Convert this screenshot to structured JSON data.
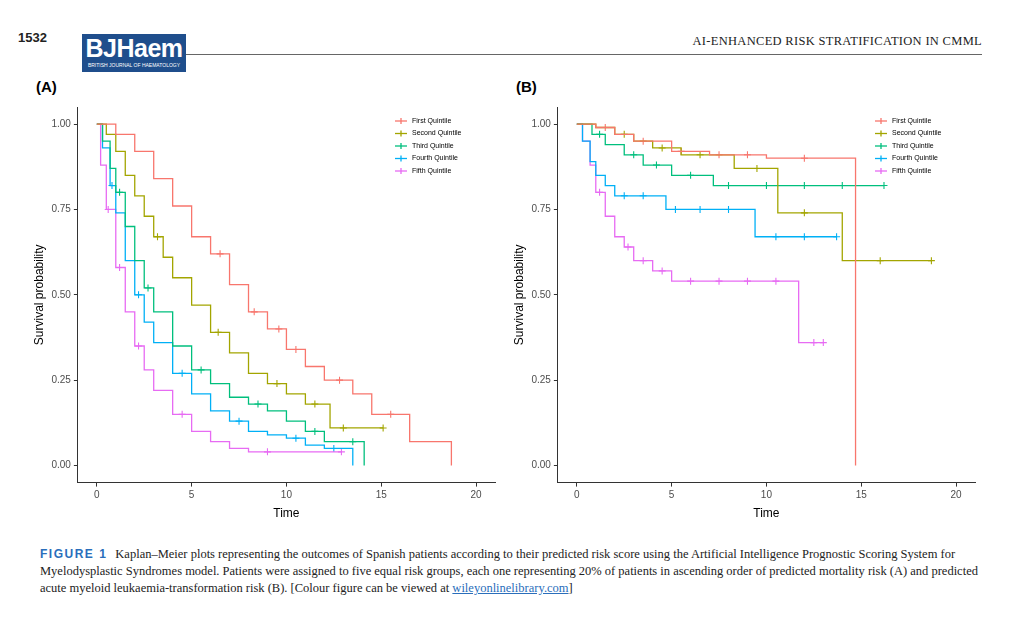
{
  "header": {
    "page": "1532",
    "journal": "BJHaem",
    "journal_subtitle": "BRITISH JOURNAL OF HAEMATOLOGY",
    "running_title": "AI-ENHANCED RISK STRATIFICATION IN CMML"
  },
  "chart_data": [
    {
      "panel": "(A)",
      "type": "line",
      "line_style": "step",
      "marker": "cross",
      "x_label": "Time",
      "y_label": "Survival probability",
      "xlim": [
        -1,
        21
      ],
      "ylim": [
        -0.05,
        1.05
      ],
      "xticks": [
        0,
        5,
        10,
        15,
        20
      ],
      "yticks": [
        {
          "value": 0,
          "label": "0.00"
        },
        {
          "value": 0.25,
          "label": "0.25"
        },
        {
          "value": 0.5,
          "label": "0.50"
        },
        {
          "value": 0.75,
          "label": "0.75"
        },
        {
          "value": 1,
          "label": "1.00"
        }
      ],
      "grid": false,
      "legend": "upper right",
      "series": [
        {
          "name": "First Quintile",
          "color": "#F8766D",
          "x": [
            0,
            1,
            2,
            3,
            4,
            5,
            6,
            7,
            8,
            9,
            10,
            11,
            12,
            13.5,
            14.5,
            16.5,
            18.7
          ],
          "values": [
            1,
            0.97,
            0.92,
            0.84,
            0.76,
            0.67,
            0.62,
            0.53,
            0.45,
            0.4,
            0.34,
            0.29,
            0.25,
            0.21,
            0.15,
            0.07,
            0
          ],
          "censored_x": [
            6.5,
            8.3,
            9.6,
            10.5,
            12.8,
            15.5
          ],
          "censored_y": [
            0.62,
            0.45,
            0.4,
            0.34,
            0.25,
            0.15
          ]
        },
        {
          "name": "Second Quintile",
          "color": "#A3A500",
          "x": [
            0,
            0.5,
            1,
            1.5,
            2,
            2.5,
            3,
            3.5,
            4,
            5,
            6,
            7,
            8,
            9,
            10,
            11,
            12.3,
            15.1
          ],
          "values": [
            1,
            0.97,
            0.92,
            0.85,
            0.79,
            0.73,
            0.67,
            0.61,
            0.55,
            0.47,
            0.39,
            0.33,
            0.27,
            0.24,
            0.21,
            0.18,
            0.11,
            0.11
          ],
          "censored_x": [
            3.2,
            6.4,
            9.5,
            11.5,
            13,
            15.1
          ],
          "censored_y": [
            0.67,
            0.39,
            0.24,
            0.18,
            0.11,
            0.11
          ]
        },
        {
          "name": "Third Quintile",
          "color": "#00BF7D",
          "x": [
            0,
            0.3,
            0.7,
            1,
            1.5,
            2,
            2.5,
            3,
            4,
            5,
            6,
            7,
            8,
            9,
            10,
            11,
            12,
            14.1
          ],
          "values": [
            1,
            0.95,
            0.87,
            0.8,
            0.7,
            0.6,
            0.52,
            0.45,
            0.35,
            0.28,
            0.24,
            0.2,
            0.18,
            0.16,
            0.13,
            0.1,
            0.07,
            0
          ],
          "censored_x": [
            1.2,
            2.7,
            5.5,
            8.5,
            11.5,
            13.5
          ],
          "censored_y": [
            0.8,
            0.52,
            0.28,
            0.18,
            0.1,
            0.07
          ]
        },
        {
          "name": "Fourth Quintile",
          "color": "#00B0F6",
          "x": [
            0,
            0.3,
            0.7,
            1,
            1.5,
            2,
            2.5,
            3,
            4,
            5,
            6,
            7,
            8,
            9,
            10,
            11,
            12,
            13.5
          ],
          "values": [
            1,
            0.93,
            0.82,
            0.74,
            0.6,
            0.5,
            0.42,
            0.36,
            0.27,
            0.21,
            0.16,
            0.13,
            0.1,
            0.09,
            0.08,
            0.06,
            0.05,
            0
          ],
          "censored_x": [
            0.8,
            2.2,
            4.5,
            7.5,
            10.5,
            12.5
          ],
          "censored_y": [
            0.82,
            0.5,
            0.27,
            0.13,
            0.08,
            0.05
          ]
        },
        {
          "name": "Fifth Quintile",
          "color": "#E76BF3",
          "x": [
            0,
            0.2,
            0.5,
            1,
            1.5,
            2,
            2.5,
            3,
            4,
            5,
            6,
            7,
            8,
            12.9
          ],
          "values": [
            1,
            0.88,
            0.75,
            0.58,
            0.45,
            0.35,
            0.28,
            0.22,
            0.15,
            0.1,
            0.07,
            0.05,
            0.04,
            0.04
          ],
          "censored_x": [
            0.6,
            1.2,
            2.2,
            4.5,
            9,
            12.9
          ],
          "censored_y": [
            0.75,
            0.58,
            0.35,
            0.15,
            0.04,
            0.04
          ]
        }
      ]
    },
    {
      "panel": "(B)",
      "type": "line",
      "line_style": "step",
      "marker": "cross",
      "x_label": "Time",
      "y_label": "Survival probability",
      "xlim": [
        -1,
        21
      ],
      "ylim": [
        -0.05,
        1.05
      ],
      "xticks": [
        0,
        5,
        10,
        15,
        20
      ],
      "yticks": [
        {
          "value": 0,
          "label": "0.00"
        },
        {
          "value": 0.25,
          "label": "0.25"
        },
        {
          "value": 0.5,
          "label": "0.50"
        },
        {
          "value": 0.75,
          "label": "0.75"
        },
        {
          "value": 1,
          "label": "1.00"
        }
      ],
      "grid": false,
      "legend": "upper right",
      "series": [
        {
          "name": "First Quintile",
          "color": "#F8766D",
          "x": [
            0,
            1,
            2,
            3,
            5,
            7,
            10,
            14.7
          ],
          "values": [
            1,
            0.99,
            0.97,
            0.95,
            0.92,
            0.91,
            0.9,
            0
          ],
          "censored_x": [
            1.5,
            3.5,
            5.5,
            7.5,
            9,
            12
          ],
          "censored_y": [
            0.99,
            0.95,
            0.92,
            0.91,
            0.91,
            0.9
          ]
        },
        {
          "name": "Second Quintile",
          "color": "#A3A500",
          "x": [
            0,
            1,
            2,
            3,
            4,
            5.5,
            8.3,
            10.6,
            14,
            18.7
          ],
          "values": [
            1,
            0.99,
            0.97,
            0.95,
            0.93,
            0.91,
            0.87,
            0.74,
            0.6,
            0.6
          ],
          "censored_x": [
            2.5,
            4.5,
            6.5,
            9.5,
            12,
            16,
            18.7
          ],
          "censored_y": [
            0.97,
            0.93,
            0.91,
            0.87,
            0.74,
            0.6,
            0.6
          ]
        },
        {
          "name": "Third Quintile",
          "color": "#00BF7D",
          "x": [
            0,
            0.8,
            1.5,
            2.5,
            3.5,
            5,
            7.2,
            16.2
          ],
          "values": [
            1,
            0.97,
            0.94,
            0.91,
            0.88,
            0.85,
            0.82,
            0.82
          ],
          "censored_x": [
            1.2,
            3,
            4.2,
            6,
            8,
            10,
            12,
            14,
            16.2
          ],
          "censored_y": [
            0.97,
            0.91,
            0.88,
            0.85,
            0.82,
            0.82,
            0.82,
            0.82,
            0.82
          ]
        },
        {
          "name": "Fourth Quintile",
          "color": "#00B0F6",
          "x": [
            0,
            0.3,
            0.7,
            1,
            1.5,
            2,
            4.7,
            9.4,
            13.7
          ],
          "values": [
            1,
            0.95,
            0.89,
            0.85,
            0.82,
            0.79,
            0.75,
            0.67,
            0.67
          ],
          "censored_x": [
            2.5,
            3.5,
            5.2,
            6.5,
            8,
            10.5,
            12,
            13.7
          ],
          "censored_y": [
            0.79,
            0.79,
            0.75,
            0.75,
            0.75,
            0.67,
            0.67,
            0.67
          ]
        },
        {
          "name": "Fifth Quintile",
          "color": "#E76BF3",
          "x": [
            0,
            0.3,
            0.7,
            1,
            1.5,
            2,
            2.5,
            3,
            4,
            5,
            11.7,
            13
          ],
          "values": [
            1,
            0.95,
            0.88,
            0.8,
            0.73,
            0.67,
            0.64,
            0.6,
            0.57,
            0.54,
            0.36,
            0.36
          ],
          "censored_x": [
            1.2,
            2.7,
            3.5,
            4.5,
            6,
            7.5,
            9,
            10.5,
            12.5,
            13
          ],
          "censored_y": [
            0.8,
            0.64,
            0.6,
            0.57,
            0.54,
            0.54,
            0.54,
            0.54,
            0.36,
            0.36
          ]
        }
      ]
    }
  ],
  "caption": {
    "label": "FIGURE 1",
    "text": "Kaplan–Meier plots representing the outcomes of Spanish patients according to their predicted risk score using the Artificial Intelligence Prognostic Scoring System for Myelodysplastic Syndromes model. Patients were assigned to five equal risk groups, each one representing 20% of patients in ascending order of predicted mortality risk (A) and predicted acute myeloid leukaemia-transformation risk (B). [Colour figure can be viewed at ",
    "link": "wileyonlinelibrary.com",
    "end": "]"
  }
}
